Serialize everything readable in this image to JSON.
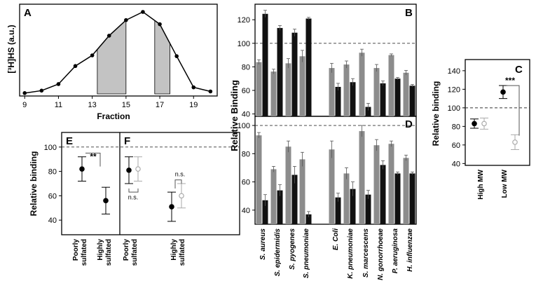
{
  "chart_data": [
    {
      "panel": "A",
      "type": "line",
      "xlabel": "Fraction",
      "ylabel": "[³H]HS (a.u.)",
      "xlim": [
        8.7,
        20.4
      ],
      "ylim": [
        0,
        100
      ],
      "xticks": [
        9,
        11,
        13,
        15,
        17,
        19
      ],
      "x": [
        9,
        10,
        11,
        12,
        13,
        14,
        15,
        16,
        17,
        18,
        19,
        20
      ],
      "y": [
        1,
        4,
        12,
        34,
        47,
        71,
        90,
        100,
        85,
        46,
        8,
        3
      ],
      "shaded_ranges": [
        [
          13.3,
          15
        ],
        [
          16.7,
          17.6
        ]
      ],
      "shaded_color": "#c3c3c3"
    },
    {
      "panel": "B",
      "type": "bar",
      "ylabel": "Relative Binding",
      "ylim": [
        38,
        132
      ],
      "yticks": [
        40,
        60,
        80,
        100,
        120
      ],
      "reference_line": 100,
      "series": [
        {
          "name": "grey",
          "color": "#8c8c8c",
          "values": [
            84,
            76,
            83,
            89,
            79,
            82,
            92,
            79,
            90,
            75
          ],
          "errors": [
            2,
            2,
            4,
            5,
            4,
            3,
            3,
            3,
            1,
            2
          ]
        },
        {
          "name": "black",
          "color": "#111111",
          "values": [
            125,
            113,
            109,
            121,
            63,
            67,
            46,
            66,
            70,
            64
          ],
          "errors": [
            3,
            2,
            3,
            1,
            3,
            3,
            3,
            2,
            1,
            1
          ]
        }
      ]
    },
    {
      "panel": "D",
      "type": "bar",
      "ylim": [
        30,
        104
      ],
      "yticks": [
        40,
        60,
        80,
        100
      ],
      "reference_line": 100,
      "categories": [
        "S. aureus",
        "S. epidermidis",
        "S. pyogenes",
        "S. pneumoniae",
        "E. Coli",
        "K. pneumoniae",
        "S. marcescens",
        "N. gonorrhoeae",
        "P. aeruginosa",
        "H. influenzae"
      ],
      "series": [
        {
          "name": "grey",
          "color": "#8c8c8c",
          "values": [
            93,
            69,
            85,
            76,
            83,
            66,
            96,
            86,
            87,
            77
          ],
          "errors": [
            2,
            2,
            4,
            5,
            6,
            4,
            4,
            4,
            2,
            2
          ]
        },
        {
          "name": "black",
          "color": "#111111",
          "values": [
            47,
            54,
            65,
            37,
            49,
            55,
            51,
            72,
            66,
            66
          ],
          "errors": [
            4,
            4,
            6,
            2,
            3,
            5,
            3,
            3,
            1,
            1
          ]
        }
      ]
    },
    {
      "panel": "C",
      "type": "scatter",
      "ylabel": "Relative  binding",
      "ylim": [
        38,
        152
      ],
      "yticks": [
        40,
        60,
        80,
        100,
        120,
        140
      ],
      "reference_line": 100,
      "categories": [
        "High MW",
        "Low MW"
      ],
      "series": [
        {
          "name": "filled",
          "color": "#000000",
          "values": [
            83,
            117
          ],
          "errors": [
            5,
            7
          ]
        },
        {
          "name": "open",
          "color": "#aaaaaa",
          "values": [
            83,
            63
          ],
          "errors": [
            6,
            8
          ]
        }
      ],
      "annotation": "***"
    },
    {
      "panel": "E",
      "type": "scatter",
      "ylabel": "Relative  binding",
      "ylim": [
        28,
        112
      ],
      "yticks": [
        40,
        60,
        80,
        100
      ],
      "reference_line": 100,
      "categories": [
        "Poorly sulfated",
        "Highly sulfated"
      ],
      "values": [
        82,
        56
      ],
      "errors": [
        10,
        11
      ],
      "annotation": "**"
    },
    {
      "panel": "F",
      "type": "scatter",
      "reference_line": 100,
      "categories": [
        "Poorly sulfated",
        "Highly sulfated"
      ],
      "series": [
        {
          "name": "filled",
          "color": "#000000",
          "values": [
            81,
            51
          ],
          "errors": [
            11,
            12
          ]
        },
        {
          "name": "open",
          "color": "#aaaaaa",
          "values": [
            82,
            60
          ],
          "errors": [
            10,
            10
          ]
        }
      ],
      "annotations": [
        "n.s.",
        "n.s."
      ]
    }
  ]
}
